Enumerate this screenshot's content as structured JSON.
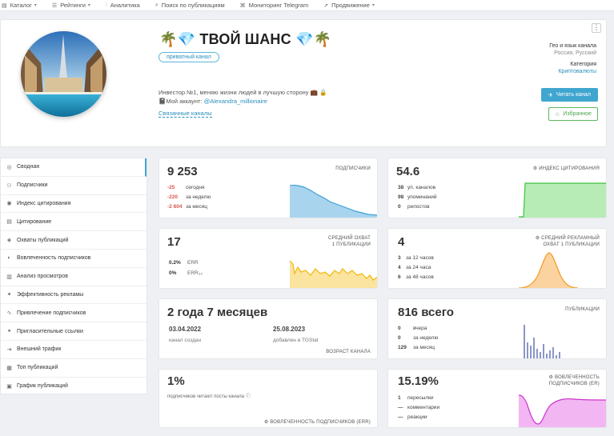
{
  "nav": [
    {
      "icon": "▤",
      "label": "Каталог",
      "caret": true
    },
    {
      "icon": "☰",
      "label": "Рейтинги",
      "caret": true
    },
    {
      "icon": "⫶",
      "label": "Аналитика",
      "caret": false
    },
    {
      "icon": "⌕",
      "label": "Поиск по публикациям",
      "caret": false
    },
    {
      "icon": "⌘",
      "label": "Мониторинг Telegram",
      "caret": false
    },
    {
      "icon": "➚",
      "label": "Продвижение",
      "caret": true
    }
  ],
  "channel": {
    "title": "🌴💎 ТВОЙ ШАНС 💎🌴",
    "private_label": "приватный канал",
    "desc_line1": "Инвестор №1, меняю жизни людей в лучшую сторону 💼 🔒",
    "desc_prefix": "📓Мой аккаунт: ",
    "desc_link": "@Alexandra_millionaire",
    "linked": "Связанные каналы",
    "geo_label": "Гео и язык канала",
    "geo_value": "Россия, Русский",
    "category_label": "Категория",
    "category_value": "Криптовалюты",
    "read_btn": "Читать канал",
    "fav_btn": "Избранное",
    "menu": "⋮"
  },
  "sidebar": [
    {
      "icon": "◎",
      "label": "Сводная"
    },
    {
      "icon": "⚇",
      "label": "Подписчики"
    },
    {
      "icon": "◉",
      "label": "Индекс цитирования"
    },
    {
      "icon": "▤",
      "label": "Цитирование"
    },
    {
      "icon": "◈",
      "label": "Охваты публикаций"
    },
    {
      "icon": "◐",
      "label": "Вовлеченность подписчиков"
    },
    {
      "icon": "▥",
      "label": "Анализ просмотров"
    },
    {
      "icon": "✦",
      "label": "Эффективность рекламы"
    },
    {
      "icon": "∿",
      "label": "Привлечение подписчиков"
    },
    {
      "icon": "⚭",
      "label": "Пригласительные ссылки"
    },
    {
      "icon": "⇥",
      "label": "Внешний трафик"
    },
    {
      "icon": "▦",
      "label": "Топ публикаций"
    },
    {
      "icon": "▣",
      "label": "График публикаций"
    }
  ],
  "colors": {
    "accent": "#40a6cf",
    "green": "#5cb85c",
    "blue_chart": "#3a9fd6",
    "green_chart": "#3cc23c",
    "yellow_chart": "#f2b705",
    "orange_chart": "#f39a1e",
    "purple_chart": "#cc33cc"
  },
  "cards": {
    "subscribers": {
      "value": "9 253",
      "label": "ПОДПИСЧИКИ",
      "rows": [
        {
          "n": "-25",
          "t": "сегодня"
        },
        {
          "n": "-220",
          "t": "за неделю"
        },
        {
          "n": "-2 604",
          "t": "за месяц"
        }
      ]
    },
    "citation": {
      "value": "54.6",
      "label": "⚙ ИНДЕКС ЦИТИРОВАНИЯ",
      "rows": [
        {
          "n": "38",
          "t": "уп. каналов"
        },
        {
          "n": "98",
          "t": "упоминаний"
        },
        {
          "n": "0",
          "t": "репостов"
        }
      ]
    },
    "reach": {
      "value": "17",
      "label1": "СРЕДНИЙ ОХВАТ",
      "label2": "1 ПУБЛИКАЦИИ",
      "rows": [
        {
          "n": "0.2%",
          "t": "ERR"
        },
        {
          "n": "0%",
          "t": "ERR₂₄"
        }
      ]
    },
    "adreach": {
      "value": "4",
      "label1": "⚙ СРЕДНИЙ РЕКЛАМНЫЙ",
      "label2": "ОХВАТ 1 ПУБЛИКАЦИИ",
      "rows": [
        {
          "n": "3",
          "t": "за 12 часов"
        },
        {
          "n": "4",
          "t": "за 24 часа"
        },
        {
          "n": "6",
          "t": "за 48 часов"
        }
      ]
    },
    "age": {
      "value": "2 года 7 месяцев",
      "created_date": "03.04.2022",
      "created_label": "канал создан",
      "added_date": "25.08.2023",
      "added_label": "добавлен в TGStat",
      "label": "ВОЗРАСТ КАНАЛА"
    },
    "posts": {
      "value": "816 всего",
      "label": "ПУБЛИКАЦИИ",
      "rows": [
        {
          "n": "0",
          "t": "вчера"
        },
        {
          "n": "0",
          "t": "за неделю"
        },
        {
          "n": "129",
          "t": "за месяц"
        }
      ]
    },
    "engagement": {
      "value": "1%",
      "sub": "подписчиков читают посты канала ⓘ",
      "label": "⚙ ВОВЛЕЧЕННОСТЬ ПОДПИСЧИКОВ (ERR)"
    },
    "er": {
      "value": "15.19%",
      "label1": "⚙ ВОВЛЕЧЕННОСТЬ",
      "label2": "ПОДПИСЧИКОВ (ER)",
      "rows": [
        {
          "n": "1",
          "t": "пересылки"
        },
        {
          "n": "—",
          "t": "комментарии"
        },
        {
          "n": "—",
          "t": "реакции"
        }
      ]
    }
  }
}
